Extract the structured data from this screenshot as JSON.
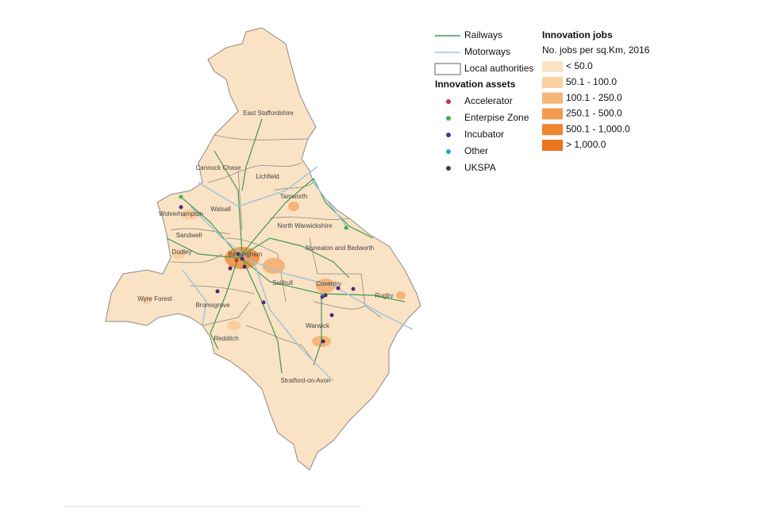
{
  "legend": {
    "lines": [
      {
        "label": "Railways",
        "color": "#3e9a52"
      },
      {
        "label": "Motorways",
        "color": "#9cc3de"
      }
    ],
    "boundary": "Local authorities",
    "assets_title": "Innovation assets",
    "assets": [
      {
        "label": "Accelerator",
        "color": "#c9343f"
      },
      {
        "label": "Enterpise Zone",
        "color": "#3fb54a"
      },
      {
        "label": "Incubator",
        "color": "#3c3f8f"
      },
      {
        "label": "Other",
        "color": "#2ea3c8"
      },
      {
        "label": "UKSPA",
        "color": "#4b2a75"
      }
    ],
    "jobs_title": "Innovation jobs",
    "jobs_subtitle": "No. jobs per sq.Km, 2016",
    "jobs_classes": [
      {
        "label": "< 50.0",
        "color": "#fbe3c3"
      },
      {
        "label": "50.1 - 100.0",
        "color": "#f9cf9f"
      },
      {
        "label": "100.1 - 250.0",
        "color": "#f6b478"
      },
      {
        "label": "250.1 - 500.0",
        "color": "#f39a4f"
      },
      {
        "label": "500.1 - 1,000.0",
        "color": "#ef8530"
      },
      {
        "label": "> 1,000.0",
        "color": "#ea7420"
      }
    ]
  },
  "map": {
    "labels": [
      "East Staffordshire",
      "Cannock Chase",
      "Lichfield",
      "Tamworth",
      "Wolverhampton",
      "Walsall",
      "North Warwickshire",
      "Sandwell",
      "Dudley",
      "Birmingham",
      "Nuneaton and Bedworth",
      "Solihull",
      "Coventry",
      "Wyre Forest",
      "Bromsgrove",
      "Rugby",
      "Warwick",
      "Redditch",
      "Stratford-on-Avon"
    ]
  }
}
